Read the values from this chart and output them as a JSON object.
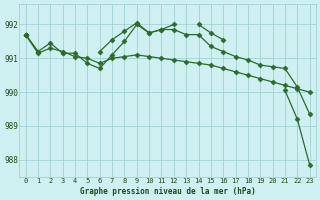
{
  "x": [
    0,
    1,
    2,
    3,
    4,
    5,
    6,
    7,
    8,
    9,
    10,
    11,
    12,
    13,
    14,
    15,
    16,
    17,
    18,
    19,
    20,
    21,
    22,
    23
  ],
  "series_upper": [
    991.7,
    991.2,
    null,
    991.15,
    null,
    null,
    991.2,
    991.55,
    991.8,
    992.05,
    991.75,
    991.85,
    992.0,
    null,
    992.0,
    991.75,
    991.55,
    null,
    null,
    null,
    null,
    null,
    null,
    null
  ],
  "series_mid_high": [
    991.7,
    991.2,
    991.45,
    991.15,
    991.15,
    990.85,
    990.7,
    991.1,
    991.5,
    992.0,
    991.75,
    991.85,
    991.85,
    991.7,
    991.7,
    991.35,
    991.2,
    991.05,
    990.95,
    990.8,
    990.75,
    990.7,
    990.15,
    989.35
  ],
  "series_mid_low": [
    991.7,
    991.15,
    991.3,
    991.2,
    991.05,
    991.0,
    990.85,
    991.0,
    991.05,
    991.1,
    991.05,
    991.0,
    990.95,
    990.9,
    990.85,
    990.8,
    990.7,
    990.6,
    990.5,
    990.4,
    990.3,
    990.2,
    990.1,
    990.0
  ],
  "series_low": [
    991.7,
    null,
    null,
    null,
    null,
    null,
    null,
    null,
    null,
    null,
    null,
    null,
    null,
    null,
    null,
    null,
    null,
    null,
    null,
    null,
    null,
    990.05,
    989.2,
    987.85
  ],
  "line_color": "#2d6a2d",
  "marker": "D",
  "markersize": 2.5,
  "linewidth": 0.9,
  "background_color": "#cef0f0",
  "grid_color": "#99cccc",
  "ylabel_ticks": [
    988,
    989,
    990,
    991,
    992
  ],
  "xlabel": "Graphe pression niveau de la mer (hPa)",
  "xlim": [
    -0.5,
    23.5
  ],
  "ylim": [
    987.5,
    992.6
  ]
}
